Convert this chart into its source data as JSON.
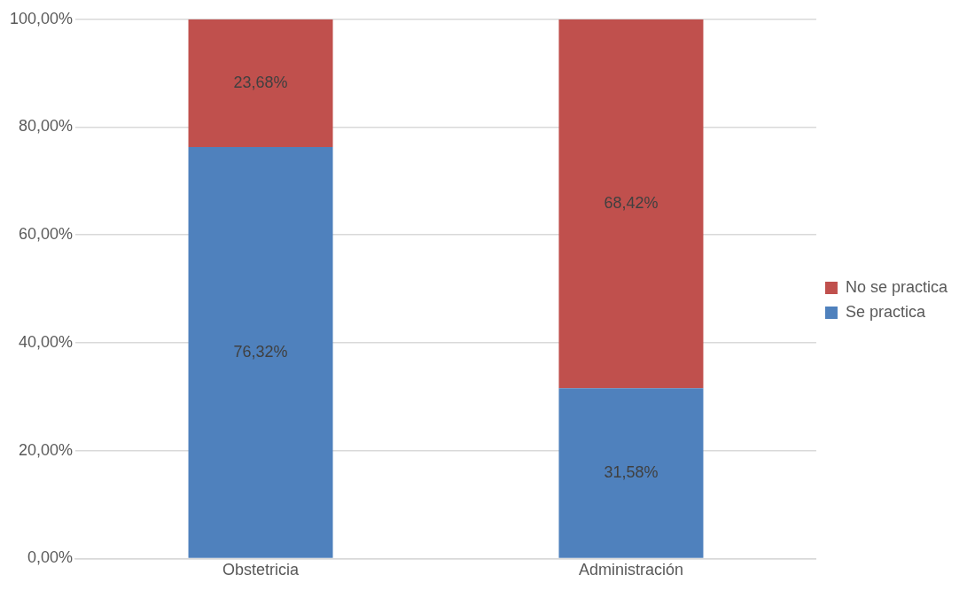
{
  "chart_data": {
    "type": "bar",
    "stacked": true,
    "categories": [
      "Obstetricia",
      "Administración"
    ],
    "series": [
      {
        "name": "Se practica",
        "color": "#4f81bd",
        "values": [
          76.32,
          31.58
        ],
        "value_labels": [
          "76,32%",
          "31,58%"
        ]
      },
      {
        "name": "No se practica",
        "color": "#c0504d",
        "values": [
          23.68,
          68.42
        ],
        "value_labels": [
          "23,68%",
          "68,42%"
        ]
      }
    ],
    "ylim": [
      0,
      100
    ],
    "yticks": [
      {
        "value": 0,
        "label": "0,00%"
      },
      {
        "value": 20,
        "label": "20,00%"
      },
      {
        "value": 40,
        "label": "40,00%"
      },
      {
        "value": 60,
        "label": "60,00%"
      },
      {
        "value": 80,
        "label": "80,00%"
      },
      {
        "value": 100,
        "label": "100,00%"
      }
    ],
    "grid": "y",
    "legend": "right"
  }
}
